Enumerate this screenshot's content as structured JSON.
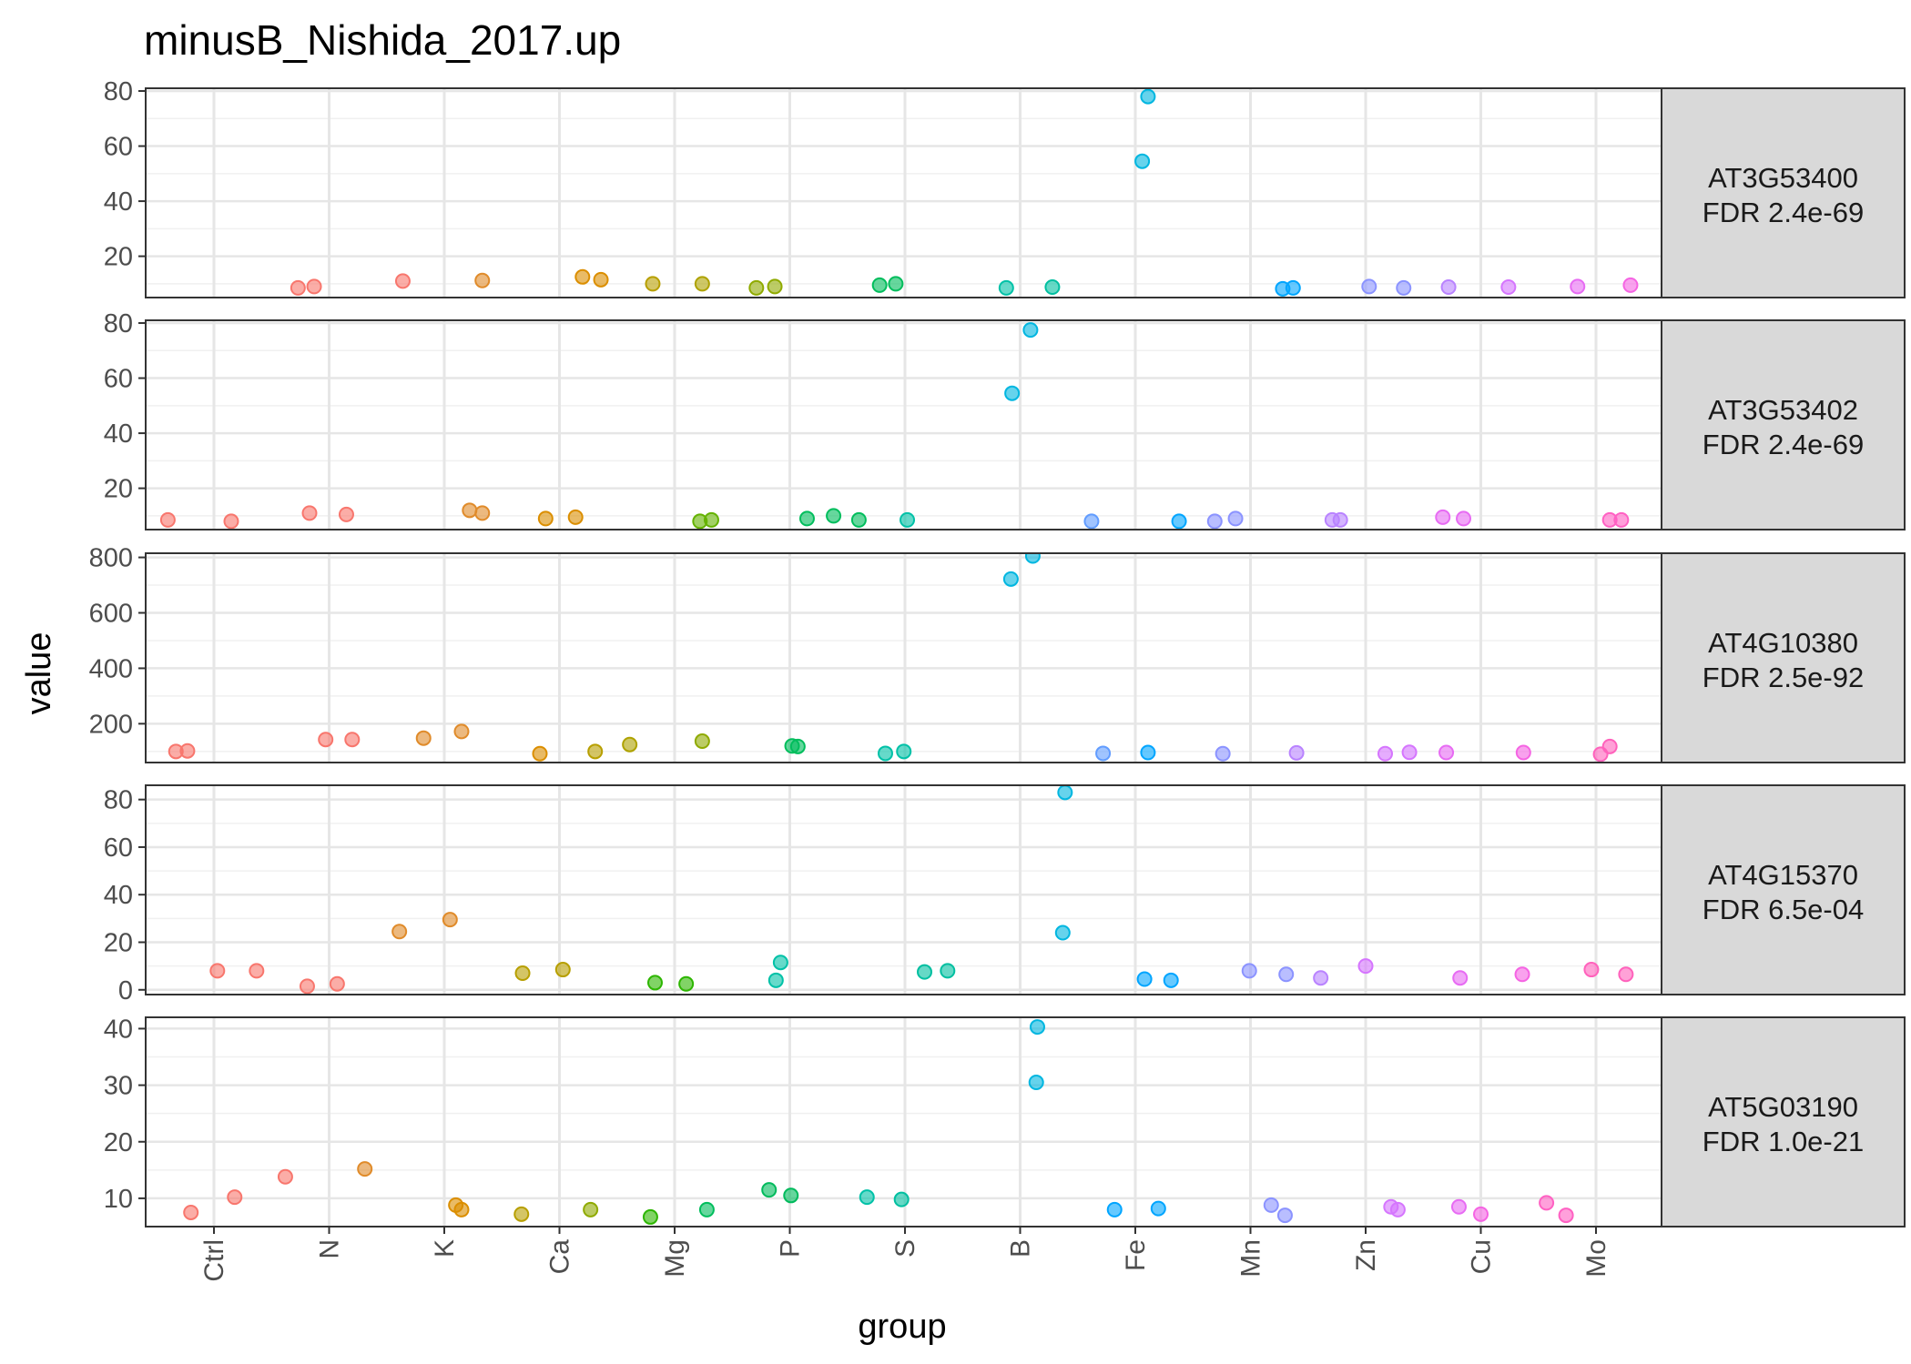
{
  "chart_data": {
    "type": "scatter",
    "title": "minusB_Nishida_2017.up",
    "xlabel": "group",
    "ylabel": "value",
    "grid": true,
    "legend": "none",
    "categories": [
      "Ctrl",
      "N",
      "K",
      "Ca",
      "Mg",
      "P",
      "S",
      "B",
      "Fe",
      "Mn",
      "Zn",
      "Cu",
      "Mo"
    ],
    "group_colors": {
      "Ctrl": "#F8766D",
      "minusCtrl": "#F8766D",
      "N": "#E08B2A",
      "minusN": "#DB8E00",
      "K": "#B79F00",
      "minusK": "#AEA200",
      "Ca": "#8FAA00",
      "minusCa": "#64B200",
      "Mg": "#2DB600",
      "minusMg": "#00BD5C",
      "P": "#00BA5C",
      "minusP": "#00C1A7",
      "S": "#00BFA0",
      "minusS": "#00BADE",
      "B": "#00B6E0",
      "Fe": "#00A5FF",
      "minusFe": "#619CFF",
      "Mn": "#8B93FF",
      "minusMn": "#B983FF",
      "Zn": "#D575FE",
      "minusZn": "#E76BF3",
      "Cu": "#F564E3",
      "minusCu": "#FF61C3",
      "Mo": "#FF62BC"
    },
    "facets": [
      {
        "label_line1": "AT3G53400",
        "label_line2": "FDR 2.4e-69",
        "ylim": [
          5,
          81
        ],
        "yticks": [
          20,
          40,
          60,
          80
        ],
        "points": [
          {
            "x": 0.73,
            "y": 8.5,
            "group": "Ctrl"
          },
          {
            "x": 0.87,
            "y": 9,
            "group": "Ctrl"
          },
          {
            "x": 1.64,
            "y": 11,
            "group": "minusCtrl"
          },
          {
            "x": 2.33,
            "y": 11.2,
            "group": "N"
          },
          {
            "x": 3.2,
            "y": 12.5,
            "group": "minusN"
          },
          {
            "x": 3.36,
            "y": 11.5,
            "group": "minusN"
          },
          {
            "x": 3.81,
            "y": 10,
            "group": "K"
          },
          {
            "x": 4.24,
            "y": 10,
            "group": "minusK"
          },
          {
            "x": 4.71,
            "y": 8.5,
            "group": "Ca"
          },
          {
            "x": 4.87,
            "y": 9,
            "group": "Ca"
          },
          {
            "x": 5.78,
            "y": 9.5,
            "group": "minusMg"
          },
          {
            "x": 5.92,
            "y": 10,
            "group": "minusMg"
          },
          {
            "x": 6.88,
            "y": 8.5,
            "group": "minusP"
          },
          {
            "x": 7.28,
            "y": 8.8,
            "group": "S"
          },
          {
            "x": 8.06,
            "y": 54.5,
            "group": "B"
          },
          {
            "x": 8.11,
            "y": 78,
            "group": "B"
          },
          {
            "x": 9.28,
            "y": 8.2,
            "group": "Fe"
          },
          {
            "x": 9.37,
            "y": 8.5,
            "group": "Fe"
          },
          {
            "x": 10.03,
            "y": 9,
            "group": "Mn"
          },
          {
            "x": 10.33,
            "y": 8.5,
            "group": "Mn"
          },
          {
            "x": 10.72,
            "y": 8.8,
            "group": "minusMn"
          },
          {
            "x": 11.24,
            "y": 8.8,
            "group": "Zn"
          },
          {
            "x": 11.84,
            "y": 9,
            "group": "minusZn"
          },
          {
            "x": 12.3,
            "y": 9.5,
            "group": "Cu"
          },
          {
            "x": 12.78,
            "y": 9,
            "group": "minusCu"
          },
          {
            "x": 12.83,
            "y": 9,
            "group": "minusCu"
          }
        ]
      },
      {
        "label_line1": "AT3G53402",
        "label_line2": "FDR 2.4e-69",
        "ylim": [
          5,
          81
        ],
        "yticks": [
          20,
          40,
          60,
          80
        ],
        "points": [
          {
            "x": -0.4,
            "y": 8.5,
            "group": "Ctrl"
          },
          {
            "x": 0.15,
            "y": 8,
            "group": "Ctrl"
          },
          {
            "x": 0.83,
            "y": 11,
            "group": "minusCtrl"
          },
          {
            "x": 1.15,
            "y": 10.5,
            "group": "minusCtrl"
          },
          {
            "x": 2.22,
            "y": 12,
            "group": "N"
          },
          {
            "x": 2.33,
            "y": 11,
            "group": "N"
          },
          {
            "x": 2.88,
            "y": 9,
            "group": "minusN"
          },
          {
            "x": 3.14,
            "y": 9.5,
            "group": "minusN"
          },
          {
            "x": 4.22,
            "y": 8,
            "group": "minusCa"
          },
          {
            "x": 4.32,
            "y": 8.5,
            "group": "minusCa"
          },
          {
            "x": 5.15,
            "y": 9,
            "group": "minusMg"
          },
          {
            "x": 5.38,
            "y": 10,
            "group": "minusMg"
          },
          {
            "x": 5.6,
            "y": 8.5,
            "group": "minusMg"
          },
          {
            "x": 6.02,
            "y": 8.5,
            "group": "minusP"
          },
          {
            "x": 6.93,
            "y": 54.5,
            "group": "B"
          },
          {
            "x": 7.09,
            "y": 77.5,
            "group": "B"
          },
          {
            "x": 7.62,
            "y": 8,
            "group": "minusFe"
          },
          {
            "x": 8.38,
            "y": 8,
            "group": "Fe"
          },
          {
            "x": 8.69,
            "y": 8,
            "group": "Mn"
          },
          {
            "x": 8.87,
            "y": 9,
            "group": "Mn"
          },
          {
            "x": 9.71,
            "y": 8.5,
            "group": "minusMn"
          },
          {
            "x": 9.78,
            "y": 8.5,
            "group": "minusMn"
          },
          {
            "x": 10.67,
            "y": 9.5,
            "group": "minusZn"
          },
          {
            "x": 10.85,
            "y": 9,
            "group": "minusZn"
          },
          {
            "x": 12.12,
            "y": 8.5,
            "group": "minusCu"
          },
          {
            "x": 12.22,
            "y": 8.5,
            "group": "minusCu"
          }
        ]
      },
      {
        "label_line1": "AT4G10380",
        "label_line2": "FDR 2.5e-92",
        "ylim": [
          60,
          815
        ],
        "yticks": [
          200,
          400,
          600,
          800
        ],
        "points": [
          {
            "x": -0.33,
            "y": 100,
            "group": "Ctrl"
          },
          {
            "x": -0.23,
            "y": 102,
            "group": "Ctrl"
          },
          {
            "x": 0.97,
            "y": 143,
            "group": "minusCtrl"
          },
          {
            "x": 1.2,
            "y": 143,
            "group": "minusCtrl"
          },
          {
            "x": 1.82,
            "y": 148,
            "group": "N"
          },
          {
            "x": 2.15,
            "y": 172,
            "group": "N"
          },
          {
            "x": 2.83,
            "y": 92,
            "group": "minusN"
          },
          {
            "x": 3.31,
            "y": 100,
            "group": "K"
          },
          {
            "x": 3.61,
            "y": 125,
            "group": "minusK"
          },
          {
            "x": 4.24,
            "y": 137,
            "group": "Ca"
          },
          {
            "x": 5.02,
            "y": 120,
            "group": "minusMg"
          },
          {
            "x": 5.07,
            "y": 118,
            "group": "minusMg"
          },
          {
            "x": 5.83,
            "y": 93,
            "group": "minusP"
          },
          {
            "x": 5.99,
            "y": 100,
            "group": "minusP"
          },
          {
            "x": 6.92,
            "y": 722,
            "group": "B"
          },
          {
            "x": 7.11,
            "y": 805,
            "group": "B"
          },
          {
            "x": 7.72,
            "y": 93,
            "group": "minusFe"
          },
          {
            "x": 8.11,
            "y": 96,
            "group": "Fe"
          },
          {
            "x": 8.76,
            "y": 92,
            "group": "Mn"
          },
          {
            "x": 9.4,
            "y": 95,
            "group": "minusMn"
          },
          {
            "x": 10.17,
            "y": 92,
            "group": "Zn"
          },
          {
            "x": 10.38,
            "y": 97,
            "group": "Zn"
          },
          {
            "x": 10.7,
            "y": 96,
            "group": "minusZn"
          },
          {
            "x": 11.37,
            "y": 96,
            "group": "Cu"
          },
          {
            "x": 12.04,
            "y": 90,
            "group": "Mo"
          },
          {
            "x": 12.12,
            "y": 118,
            "group": "Mo"
          }
        ]
      },
      {
        "label_line1": "AT4G15370",
        "label_line2": "FDR 6.5e-04",
        "ylim": [
          -2,
          86
        ],
        "yticks": [
          0,
          20,
          40,
          60,
          80
        ],
        "points": [
          {
            "x": 0.03,
            "y": 8,
            "group": "Ctrl"
          },
          {
            "x": 0.37,
            "y": 8,
            "group": "Ctrl"
          },
          {
            "x": 0.81,
            "y": 1.5,
            "group": "minusCtrl"
          },
          {
            "x": 1.07,
            "y": 2.5,
            "group": "minusCtrl"
          },
          {
            "x": 1.61,
            "y": 24.5,
            "group": "N"
          },
          {
            "x": 2.05,
            "y": 29.5,
            "group": "N"
          },
          {
            "x": 2.68,
            "y": 7,
            "group": "K"
          },
          {
            "x": 3.03,
            "y": 8.5,
            "group": "K"
          },
          {
            "x": 3.83,
            "y": 3,
            "group": "Mg"
          },
          {
            "x": 4.1,
            "y": 2.5,
            "group": "Mg"
          },
          {
            "x": 4.88,
            "y": 4,
            "group": "minusP"
          },
          {
            "x": 4.92,
            "y": 11.5,
            "group": "minusP"
          },
          {
            "x": 6.17,
            "y": 7.5,
            "group": "S"
          },
          {
            "x": 6.37,
            "y": 8,
            "group": "S"
          },
          {
            "x": 7.37,
            "y": 24,
            "group": "B"
          },
          {
            "x": 7.39,
            "y": 83,
            "group": "B"
          },
          {
            "x": 8.08,
            "y": 4.5,
            "group": "Fe"
          },
          {
            "x": 8.31,
            "y": 4,
            "group": "Fe"
          },
          {
            "x": 8.99,
            "y": 8,
            "group": "Mn"
          },
          {
            "x": 9.31,
            "y": 6.5,
            "group": "Mn"
          },
          {
            "x": 9.61,
            "y": 5,
            "group": "minusMn"
          },
          {
            "x": 10.0,
            "y": 10,
            "group": "Zn"
          },
          {
            "x": 10.82,
            "y": 5,
            "group": "minusZn"
          },
          {
            "x": 11.36,
            "y": 6.5,
            "group": "Cu"
          },
          {
            "x": 11.96,
            "y": 8.5,
            "group": "Mo"
          },
          {
            "x": 12.26,
            "y": 6.5,
            "group": "Mo"
          }
        ]
      },
      {
        "label_line1": "AT5G03190",
        "label_line2": "FDR 1.0e-21",
        "ylim": [
          5,
          42
        ],
        "yticks": [
          10,
          20,
          30,
          40
        ],
        "points": [
          {
            "x": -0.2,
            "y": 7.5,
            "group": "Ctrl"
          },
          {
            "x": 0.18,
            "y": 10.2,
            "group": "Ctrl"
          },
          {
            "x": 0.62,
            "y": 13.8,
            "group": "minusCtrl"
          },
          {
            "x": 1.31,
            "y": 15.2,
            "group": "N"
          },
          {
            "x": 2.1,
            "y": 8.8,
            "group": "minusN"
          },
          {
            "x": 2.15,
            "y": 8,
            "group": "minusN"
          },
          {
            "x": 2.67,
            "y": 7.2,
            "group": "K"
          },
          {
            "x": 3.27,
            "y": 8,
            "group": "Ca"
          },
          {
            "x": 3.79,
            "y": 6.7,
            "group": "Mg"
          },
          {
            "x": 4.28,
            "y": 8,
            "group": "minusMg"
          },
          {
            "x": 4.82,
            "y": 11.5,
            "group": "P"
          },
          {
            "x": 5.01,
            "y": 10.5,
            "group": "P"
          },
          {
            "x": 5.67,
            "y": 10.2,
            "group": "minusP"
          },
          {
            "x": 5.97,
            "y": 9.8,
            "group": "S"
          },
          {
            "x": 7.14,
            "y": 30.5,
            "group": "B"
          },
          {
            "x": 7.15,
            "y": 40.3,
            "group": "B"
          },
          {
            "x": 7.82,
            "y": 8,
            "group": "Fe"
          },
          {
            "x": 8.2,
            "y": 8.2,
            "group": "Fe"
          },
          {
            "x": 9.18,
            "y": 8.8,
            "group": "Mn"
          },
          {
            "x": 9.3,
            "y": 7,
            "group": "Mn"
          },
          {
            "x": 10.22,
            "y": 8.5,
            "group": "Zn"
          },
          {
            "x": 10.28,
            "y": 8,
            "group": "Zn"
          },
          {
            "x": 10.81,
            "y": 8.5,
            "group": "minusZn"
          },
          {
            "x": 11.0,
            "y": 7.2,
            "group": "Cu"
          },
          {
            "x": 11.57,
            "y": 9.2,
            "group": "minusCu"
          },
          {
            "x": 11.74,
            "y": 7,
            "group": "minusCu"
          }
        ]
      }
    ]
  }
}
